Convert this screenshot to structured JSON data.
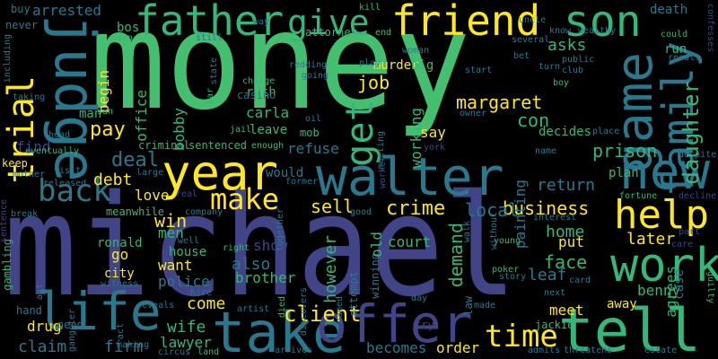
{
  "words": [
    {
      "text": "money",
      "color": "#44bf70"
    },
    {
      "text": "michael",
      "color": "#414487"
    },
    {
      "text": "walter",
      "color": "#2a788e"
    },
    {
      "text": "father",
      "color": "#35b779"
    },
    {
      "text": "friend",
      "color": "#fde725"
    },
    {
      "text": "judge",
      "color": "#2a788e"
    },
    {
      "text": "year",
      "color": "#fde725"
    },
    {
      "text": "take",
      "color": "#2a788e"
    },
    {
      "text": "tell",
      "color": "#35b779"
    },
    {
      "text": "life",
      "color": "#2a788e"
    },
    {
      "text": "offer",
      "color": "#414487"
    },
    {
      "text": "game",
      "color": "#2a788e"
    },
    {
      "text": "family",
      "color": "#2a788e"
    },
    {
      "text": "new",
      "color": "#2a788e"
    },
    {
      "text": "work",
      "color": "#35b779"
    },
    {
      "text": "son",
      "color": "#35b779"
    },
    {
      "text": "give",
      "color": "#35b779"
    },
    {
      "text": "help",
      "color": "#fde725"
    },
    {
      "text": "trial",
      "color": "#fde725"
    },
    {
      "text": "back",
      "color": "#2a788e"
    },
    {
      "text": "make",
      "color": "#fde725"
    },
    {
      "text": "get",
      "color": "#35b779"
    },
    {
      "text": "time",
      "color": "#fde725"
    },
    {
      "text": "client",
      "color": "#fde725"
    },
    {
      "text": "daughter",
      "color": "#35b779"
    },
    {
      "text": "margaret",
      "color": "#fde725"
    },
    {
      "text": "prison",
      "color": "#35b779"
    },
    {
      "text": "crime",
      "color": "#fde725"
    },
    {
      "text": "business",
      "color": "#fde725"
    },
    {
      "text": "local",
      "color": "#2a788e"
    },
    {
      "text": "sell",
      "color": "#fde725"
    },
    {
      "text": "home",
      "color": "#35b779"
    },
    {
      "text": "face",
      "color": "#35b779"
    },
    {
      "text": "return",
      "color": "#2a788e"
    },
    {
      "text": "demand",
      "color": "#35b779"
    },
    {
      "text": "job",
      "color": "#fde725"
    },
    {
      "text": "painting",
      "color": "#2a788e"
    },
    {
      "text": "con",
      "color": "#35b779"
    },
    {
      "text": "asks",
      "color": "#35b779"
    },
    {
      "text": "pay",
      "color": "#fde725"
    },
    {
      "text": "deal",
      "color": "#2a788e"
    },
    {
      "text": "debt",
      "color": "#fde725"
    },
    {
      "text": "love",
      "color": "#fde725"
    },
    {
      "text": "win",
      "color": "#fde725"
    },
    {
      "text": "men",
      "color": "#35b779"
    },
    {
      "text": "want",
      "color": "#fde725"
    },
    {
      "text": "also",
      "color": "#2a788e"
    },
    {
      "text": "come",
      "color": "#fde725"
    },
    {
      "text": "wife",
      "color": "#35b779"
    },
    {
      "text": "lawyer",
      "color": "#35b779"
    },
    {
      "text": "court",
      "color": "#35b779"
    },
    {
      "text": "put",
      "color": "#fde725"
    },
    {
      "text": "leaf",
      "color": "#2a788e"
    },
    {
      "text": "later",
      "color": "#fde725"
    },
    {
      "text": "meet",
      "color": "#fde725"
    },
    {
      "text": "benny",
      "color": "#35b779"
    },
    {
      "text": "becomes",
      "color": "#2a788e"
    },
    {
      "text": "order",
      "color": "#fde725"
    },
    {
      "text": "claim",
      "color": "#2a788e"
    },
    {
      "text": "firm",
      "color": "#2a788e"
    },
    {
      "text": "drug",
      "color": "#fde725"
    },
    {
      "text": "police",
      "color": "#2a788e"
    },
    {
      "text": "brother",
      "color": "#35b779"
    },
    {
      "text": "however",
      "color": "#35b779"
    },
    {
      "text": "show",
      "color": "#414487"
    },
    {
      "text": "refuse",
      "color": "#2a788e"
    },
    {
      "text": "would",
      "color": "#2a788e"
    },
    {
      "text": "plan",
      "color": "#35b779"
    },
    {
      "text": "agrees",
      "color": "#35b779"
    },
    {
      "text": "away",
      "color": "#fde725"
    },
    {
      "text": "ronald",
      "color": "#35b779"
    },
    {
      "text": "house",
      "color": "#35b779"
    },
    {
      "text": "go",
      "color": "#fde725"
    },
    {
      "text": "city",
      "color": "#fde725"
    },
    {
      "text": "office",
      "color": "#35b779"
    },
    {
      "text": "bobby",
      "color": "#35b779"
    },
    {
      "text": "begin",
      "color": "#fde725"
    },
    {
      "text": "man",
      "color": "#35b779"
    },
    {
      "text": "ruth",
      "color": "#35b779"
    },
    {
      "text": "carla",
      "color": "#35b779"
    },
    {
      "text": "casino",
      "color": "#2a788e"
    },
    {
      "text": "leave",
      "color": "#35b779"
    },
    {
      "text": "criminal",
      "color": "#35b779"
    },
    {
      "text": "sentenced",
      "color": "#35b779"
    },
    {
      "text": "mob",
      "color": "#35b779"
    },
    {
      "text": "working",
      "color": "#35b779"
    },
    {
      "text": "decides",
      "color": "#35b779"
    },
    {
      "text": "arrested",
      "color": "#2a788e"
    },
    {
      "text": "bos",
      "color": "#35b779"
    },
    {
      "text": "murder",
      "color": "#fde725"
    },
    {
      "text": "attorney",
      "color": "#35b779"
    },
    {
      "text": "big",
      "color": "#35b779"
    },
    {
      "text": "run",
      "color": "#35b779"
    },
    {
      "text": "death",
      "color": "#2a788e"
    },
    {
      "text": "find",
      "color": "#414487"
    },
    {
      "text": "keep",
      "color": "#fde725"
    },
    {
      "text": "gambling",
      "color": "#35b779"
    },
    {
      "text": "hand",
      "color": "#2a788e"
    },
    {
      "text": "need",
      "color": "#2a788e"
    },
    {
      "text": "never",
      "color": "#2a788e"
    },
    {
      "text": "buy",
      "color": "#2a788e"
    },
    {
      "text": "witness",
      "color": "#2a788e"
    },
    {
      "text": "meanwhile",
      "color": "#35b779"
    },
    {
      "text": "attempt",
      "color": "#2a788e"
    },
    {
      "text": "winning",
      "color": "#2a788e"
    },
    {
      "text": "old",
      "color": "#35b779"
    },
    {
      "text": "say",
      "color": "#fde725"
    },
    {
      "text": "jackie",
      "color": "#35b779"
    },
    {
      "text": "eventually",
      "color": "#35b779"
    },
    {
      "text": "including",
      "color": "#2a788e"
    },
    {
      "text": "poker",
      "color": "#35b779"
    },
    {
      "text": "case",
      "color": "#2a788e"
    },
    {
      "text": "law",
      "color": "#2a788e"
    },
    {
      "text": "fortune",
      "color": "#35b779"
    },
    {
      "text": "try",
      "color": "#414487"
    },
    {
      "text": "gangster",
      "color": "#2a788e"
    },
    {
      "text": "young",
      "color": "#35b779"
    },
    {
      "text": "story",
      "color": "#2a788e"
    },
    {
      "text": "artist",
      "color": "#2a788e"
    },
    {
      "text": "reveals",
      "color": "#2a788e"
    },
    {
      "text": "estate",
      "color": "#2a788e"
    },
    {
      "text": "threatens",
      "color": "#2a788e"
    },
    {
      "text": "admits",
      "color": "#2a788e"
    },
    {
      "text": "arrives",
      "color": "#2a788e"
    },
    {
      "text": "making",
      "color": "#2a788e"
    },
    {
      "text": "circus",
      "color": "#2a788e"
    },
    {
      "text": "land",
      "color": "#35b779"
    },
    {
      "text": "kill",
      "color": "#35b779"
    },
    {
      "text": "end",
      "color": "#35b779"
    },
    {
      "text": "could",
      "color": "#35b779"
    },
    {
      "text": "uncle",
      "color": "#2a788e"
    },
    {
      "text": "know",
      "color": "#2a788e"
    },
    {
      "text": "wealthy",
      "color": "#2a788e"
    },
    {
      "text": "public",
      "color": "#2a788e"
    },
    {
      "text": "club",
      "color": "#2a788e"
    },
    {
      "text": "result",
      "color": "#2a788e"
    },
    {
      "text": "confesses",
      "color": "#414487"
    },
    {
      "text": "woman",
      "color": "#2a788e"
    },
    {
      "text": "play",
      "color": "#2a788e"
    },
    {
      "text": "start",
      "color": "#2a788e"
    },
    {
      "text": "turn",
      "color": "#2a788e"
    },
    {
      "text": "bet",
      "color": "#2a788e"
    },
    {
      "text": "boy",
      "color": "#35b779"
    },
    {
      "text": "owner",
      "color": "#2a788e"
    },
    {
      "text": "place",
      "color": "#2a788e"
    },
    {
      "text": "name",
      "color": "#2a788e"
    },
    {
      "text": "despite",
      "color": "#2a788e"
    },
    {
      "text": "decline",
      "color": "#414487"
    },
    {
      "text": "part",
      "color": "#414487"
    },
    {
      "text": "care",
      "color": "#414487"
    },
    {
      "text": "guilty",
      "color": "#35b779"
    },
    {
      "text": "card",
      "color": "#2a788e"
    },
    {
      "text": "next",
      "color": "#2a788e"
    },
    {
      "text": "made",
      "color": "#2a788e"
    },
    {
      "text": "walk",
      "color": "#2a788e"
    },
    {
      "text": "interest",
      "color": "#2a788e"
    },
    {
      "text": "good",
      "color": "#2a788e"
    },
    {
      "text": "together",
      "color": "#2a788e"
    },
    {
      "text": "former",
      "color": "#2a788e"
    },
    {
      "text": "enough",
      "color": "#35b779"
    },
    {
      "text": "jail",
      "color": "#35b779"
    },
    {
      "text": "bar",
      "color": "#35b779"
    },
    {
      "text": "state",
      "color": "#2a788e"
    },
    {
      "text": "charge",
      "color": "#35b779"
    },
    {
      "text": "going",
      "color": "#2a788e"
    },
    {
      "text": "redding",
      "color": "#2a788e"
    },
    {
      "text": "still",
      "color": "#2a788e"
    },
    {
      "text": "even",
      "color": "#35b779"
    },
    {
      "text": "san",
      "color": "#35b779"
    },
    {
      "text": "head",
      "color": "#2a788e"
    },
    {
      "text": "taking",
      "color": "#2a788e"
    },
    {
      "text": "visit",
      "color": "#2a788e"
    },
    {
      "text": "mother",
      "color": "#2a788e"
    },
    {
      "text": "released",
      "color": "#2a788e"
    },
    {
      "text": "break",
      "color": "#2a788e"
    },
    {
      "text": "sentence",
      "color": "#414487"
    },
    {
      "text": "art",
      "color": "#2a788e"
    },
    {
      "text": "hire",
      "color": "#2a788e"
    },
    {
      "text": "well",
      "color": "#2a788e"
    },
    {
      "text": "right",
      "color": "#35b779"
    },
    {
      "text": "discovers",
      "color": "#2a788e"
    },
    {
      "text": "named",
      "color": "#2a788e"
    },
    {
      "text": "died",
      "color": "#35b779"
    },
    {
      "text": "day",
      "color": "#2a788e"
    },
    {
      "text": "way",
      "color": "#2a788e"
    },
    {
      "text": "several",
      "color": "#2a788e"
    },
    {
      "text": "meeting",
      "color": "#2a788e"
    },
    {
      "text": "oil",
      "color": "#2a788e"
    },
    {
      "text": "york",
      "color": "#414487"
    },
    {
      "text": "without",
      "color": "#2a788e"
    },
    {
      "text": "worker",
      "color": "#414487"
    },
    {
      "text": "large",
      "color": "#2a788e"
    },
    {
      "text": "real",
      "color": "#414487"
    },
    {
      "text": "company",
      "color": "#2a788e"
    },
    {
      "text": "act",
      "color": "#2a788e"
    }
  ]
}
